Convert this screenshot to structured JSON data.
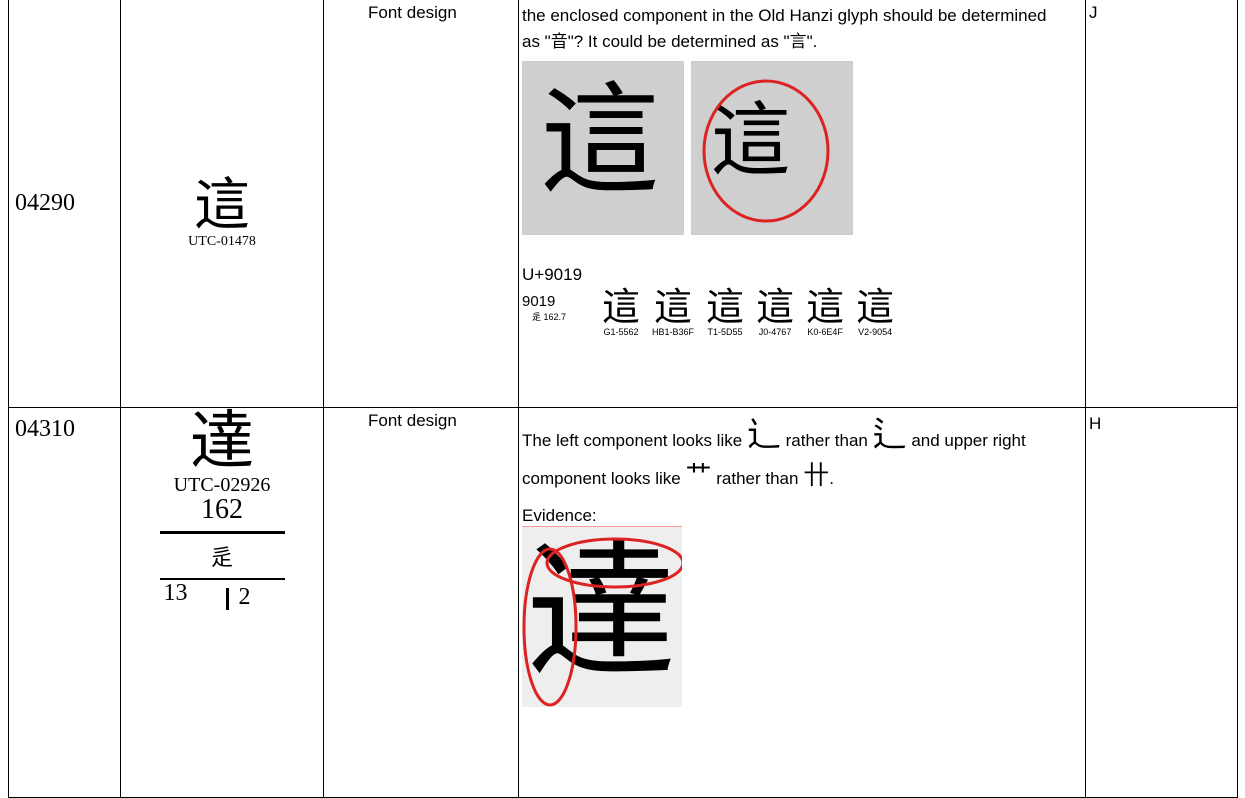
{
  "rows": [
    {
      "id": "04290",
      "glyph": "這",
      "source": "UTC-01478",
      "category": "Font design",
      "comment": "the enclosed component in the Old Hanzi glyph should be determined as \"音\"? It could be determined as \"言\".",
      "evidence_glyphs": [
        "這",
        "這"
      ],
      "codepoint": "U+9019",
      "chart": {
        "code": "9019",
        "radical": "辵 162.7",
        "glyphs": [
          {
            "char": "這",
            "source": "G1-5562"
          },
          {
            "char": "這",
            "source": "HB1-B36F"
          },
          {
            "char": "這",
            "source": "T1-5D55"
          },
          {
            "char": "這",
            "source": "J0-4767"
          },
          {
            "char": "這",
            "source": "K0-6E4F"
          },
          {
            "char": "這",
            "source": "V2-9054"
          }
        ]
      },
      "status": "J"
    },
    {
      "id": "04310",
      "glyph": "達",
      "source": "UTC-02926",
      "radical_number": "162",
      "radical": "辵",
      "strokes": "13",
      "residual": "2",
      "category": "Font design",
      "comment": [
        "The left component looks like",
        "rather than",
        "and upper right component looks like",
        "rather than",
        "."
      ],
      "comment_glyphs": [
        "⻌",
        "⻍",
        "艹",
        "卄"
      ],
      "evidence_label": "Evidence:",
      "evidence_glyph": "達",
      "status": "H"
    }
  ]
}
